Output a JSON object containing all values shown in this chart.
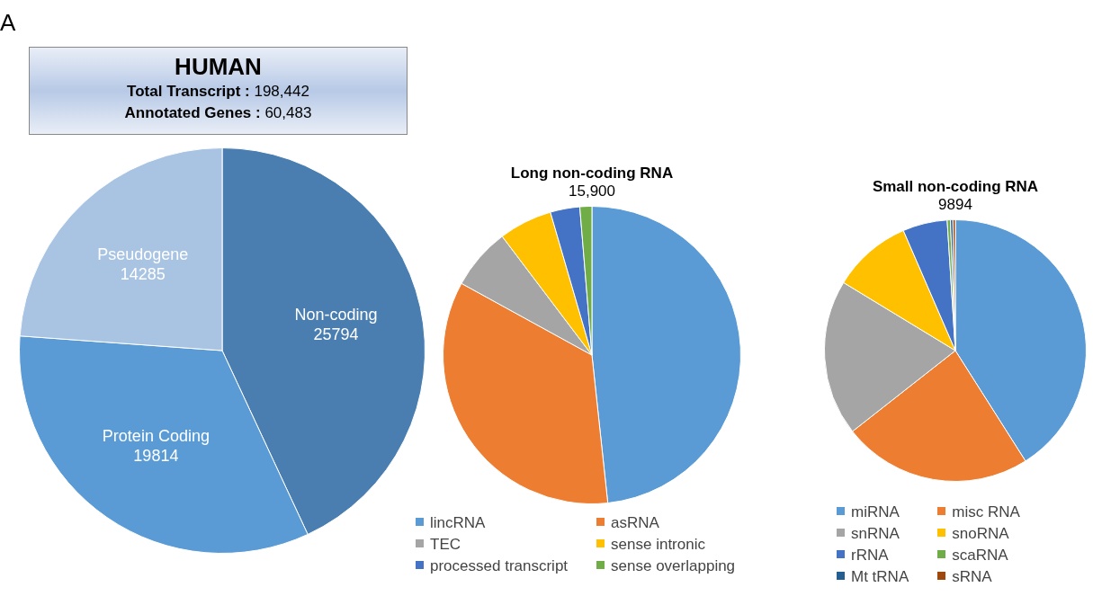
{
  "chart_data": [
    {
      "type": "pie",
      "title": "HUMAN",
      "annotations": [
        "A",
        "Total Transcript : 198,442",
        "Annotated Genes : 60,483"
      ],
      "categories": [
        "Non-coding",
        "Protein Coding",
        "Pseudogene"
      ],
      "values": [
        25794,
        19814,
        14285
      ],
      "colors": [
        "#4a7eb0",
        "#5b9bd5",
        "#a9c4e2"
      ],
      "data_labels": true,
      "legend": false
    },
    {
      "type": "pie",
      "title": "Long non-coding RNA",
      "subtitle": "15,900",
      "categories": [
        "lincRNA",
        "asRNA",
        "TEC",
        "sense intronic",
        "processed transcript",
        "sense overlapping"
      ],
      "values": [
        48.3,
        34.7,
        6.7,
        5.8,
        3.2,
        1.3
      ],
      "colors": [
        "#5b9bd5",
        "#ed7d31",
        "#a5a5a5",
        "#ffc000",
        "#4472c4",
        "#70ad47"
      ],
      "legend": "bottom"
    },
    {
      "type": "pie",
      "title": "Small non-coding RNA",
      "subtitle": "9894",
      "categories": [
        "miRNA",
        "misc RNA",
        "snRNA",
        "snoRNA",
        "rRNA",
        "scaRNA",
        "Mt tRNA",
        "sRNA"
      ],
      "values": [
        41.0,
        23.4,
        19.3,
        9.8,
        5.5,
        0.4,
        0.3,
        0.3
      ],
      "colors": [
        "#5b9bd5",
        "#ed7d31",
        "#a5a5a5",
        "#ffc000",
        "#4472c4",
        "#70ad47",
        "#255e91",
        "#9e480e"
      ],
      "legend": "bottom"
    }
  ]
}
